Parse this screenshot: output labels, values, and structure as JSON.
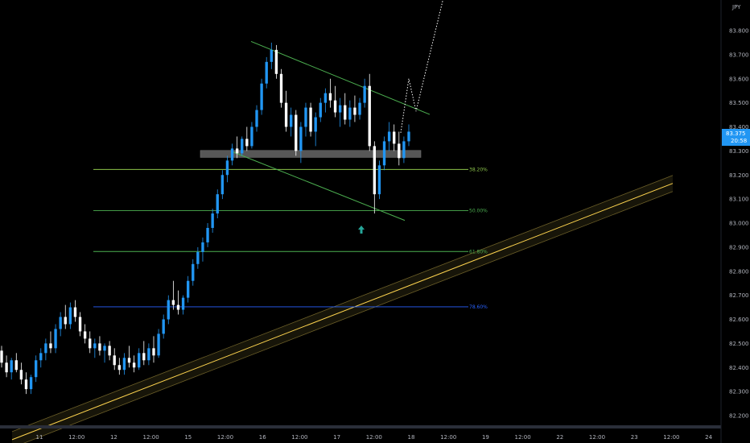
{
  "chart_data": {
    "type": "candlestick",
    "symbol_text": "JPY",
    "current_price_label": "83.375",
    "countdown_label": "20:58",
    "colors": {
      "up": "#2196f3",
      "down": "#ffffff",
      "fib_382": "#8bc34a",
      "fib_500": "#4caf50",
      "fib_618": "#4caf50",
      "fib_786": "#2962ff",
      "channel": "#4caf50",
      "trendline": "#ffd54f",
      "support_zone": "#9e9e9e",
      "badge": "#2196f3",
      "arrow": "#26a69a",
      "projection": "#ffffff"
    },
    "y_axis": {
      "ylim": [
        82.16,
        83.94
      ],
      "ticks": [
        "83.800",
        "83.700",
        "83.600",
        "83.500",
        "83.400",
        "83.300",
        "83.200",
        "83.100",
        "83.000",
        "82.900",
        "82.800",
        "82.700",
        "82.600",
        "82.500",
        "82.400",
        "82.300",
        "82.200"
      ]
    },
    "x_axis": {
      "ticks": [
        "11",
        "12:00",
        "12",
        "12:00",
        "15",
        "12:00",
        "16",
        "12:00",
        "17",
        "12:00",
        "18",
        "12:00",
        "19",
        "12:00",
        "22",
        "12:00",
        "23",
        "12:00",
        "24"
      ]
    },
    "candles_ohlc": [
      [
        82.47,
        82.49,
        82.4,
        82.42
      ],
      [
        82.42,
        82.45,
        82.36,
        82.38
      ],
      [
        82.38,
        82.44,
        82.35,
        82.43
      ],
      [
        82.43,
        82.46,
        82.38,
        82.39
      ],
      [
        82.39,
        82.42,
        82.33,
        82.35
      ],
      [
        82.35,
        82.38,
        82.29,
        82.31
      ],
      [
        82.31,
        82.37,
        82.29,
        82.36
      ],
      [
        82.36,
        82.45,
        82.34,
        82.43
      ],
      [
        82.43,
        82.48,
        82.4,
        82.46
      ],
      [
        82.46,
        82.52,
        82.43,
        82.5
      ],
      [
        82.5,
        82.55,
        82.46,
        82.48
      ],
      [
        82.48,
        82.58,
        82.46,
        82.56
      ],
      [
        82.56,
        82.63,
        82.53,
        82.61
      ],
      [
        82.61,
        82.66,
        82.56,
        82.58
      ],
      [
        82.58,
        82.67,
        82.56,
        82.65
      ],
      [
        82.65,
        82.68,
        82.59,
        82.61
      ],
      [
        82.61,
        82.63,
        82.53,
        82.55
      ],
      [
        82.55,
        82.58,
        82.5,
        82.52
      ],
      [
        82.52,
        82.55,
        82.46,
        82.48
      ],
      [
        82.48,
        82.52,
        82.44,
        82.5
      ],
      [
        82.5,
        82.53,
        82.45,
        82.47
      ],
      [
        82.47,
        82.5,
        82.42,
        82.49
      ],
      [
        82.49,
        82.51,
        82.43,
        82.45
      ],
      [
        82.45,
        82.48,
        82.39,
        82.41
      ],
      [
        82.41,
        82.44,
        82.37,
        82.39
      ],
      [
        82.39,
        82.46,
        82.37,
        82.44
      ],
      [
        82.44,
        82.49,
        82.4,
        82.42
      ],
      [
        82.42,
        82.45,
        82.38,
        82.4
      ],
      [
        82.4,
        82.48,
        82.39,
        82.46
      ],
      [
        82.46,
        82.51,
        82.41,
        82.43
      ],
      [
        82.43,
        82.5,
        82.41,
        82.48
      ],
      [
        82.48,
        82.53,
        82.42,
        82.45
      ],
      [
        82.45,
        82.56,
        82.44,
        82.54
      ],
      [
        82.54,
        82.62,
        82.52,
        82.6
      ],
      [
        82.6,
        82.7,
        82.58,
        82.68
      ],
      [
        82.68,
        82.76,
        82.64,
        82.66
      ],
      [
        82.66,
        82.72,
        82.62,
        82.64
      ],
      [
        82.64,
        82.7,
        82.62,
        82.69
      ],
      [
        82.69,
        82.78,
        82.67,
        82.76
      ],
      [
        82.76,
        82.85,
        82.74,
        82.83
      ],
      [
        82.83,
        82.9,
        82.81,
        82.88
      ],
      [
        82.88,
        82.94,
        82.84,
        82.92
      ],
      [
        82.92,
        83.0,
        82.9,
        82.98
      ],
      [
        82.98,
        83.06,
        82.96,
        83.04
      ],
      [
        83.04,
        83.14,
        83.02,
        83.12
      ],
      [
        83.12,
        83.22,
        83.1,
        83.2
      ],
      [
        83.2,
        83.28,
        83.17,
        83.26
      ],
      [
        83.26,
        83.33,
        83.24,
        83.31
      ],
      [
        83.31,
        83.36,
        83.27,
        83.29
      ],
      [
        83.29,
        83.36,
        83.28,
        83.35
      ],
      [
        83.35,
        83.4,
        83.3,
        83.32
      ],
      [
        83.32,
        83.42,
        83.31,
        83.4
      ],
      [
        83.4,
        83.49,
        83.38,
        83.47
      ],
      [
        83.47,
        83.6,
        83.45,
        83.58
      ],
      [
        83.58,
        83.69,
        83.56,
        83.67
      ],
      [
        83.67,
        83.75,
        83.64,
        83.72
      ],
      [
        83.72,
        83.74,
        83.6,
        83.62
      ],
      [
        83.62,
        83.64,
        83.48,
        83.5
      ],
      [
        83.5,
        83.55,
        83.38,
        83.4
      ],
      [
        83.4,
        83.48,
        83.36,
        83.45
      ],
      [
        83.45,
        83.47,
        83.28,
        83.3
      ],
      [
        83.3,
        83.42,
        83.25,
        83.4
      ],
      [
        83.4,
        83.5,
        83.36,
        83.48
      ],
      [
        83.48,
        83.5,
        83.36,
        83.38
      ],
      [
        83.38,
        83.46,
        83.32,
        83.44
      ],
      [
        83.44,
        83.52,
        83.42,
        83.5
      ],
      [
        83.5,
        83.56,
        83.46,
        83.54
      ],
      [
        83.54,
        83.6,
        83.48,
        83.51
      ],
      [
        83.51,
        83.57,
        83.44,
        83.46
      ],
      [
        83.46,
        83.52,
        83.4,
        83.49
      ],
      [
        83.49,
        83.54,
        83.41,
        83.43
      ],
      [
        83.43,
        83.51,
        83.4,
        83.48
      ],
      [
        83.48,
        83.53,
        83.42,
        83.45
      ],
      [
        83.45,
        83.52,
        83.43,
        83.5
      ],
      [
        83.5,
        83.6,
        83.48,
        83.57
      ],
      [
        83.57,
        83.62,
        83.3,
        83.32
      ],
      [
        83.32,
        83.34,
        83.04,
        83.12
      ],
      [
        83.12,
        83.26,
        83.1,
        83.24
      ],
      [
        83.24,
        83.36,
        83.22,
        83.34
      ],
      [
        83.34,
        83.42,
        83.3,
        83.38
      ],
      [
        83.38,
        83.41,
        83.3,
        83.33
      ],
      [
        83.33,
        83.38,
        83.24,
        83.27
      ],
      [
        83.27,
        83.36,
        83.25,
        83.34
      ],
      [
        83.34,
        83.41,
        83.32,
        83.38
      ]
    ],
    "fib_levels": [
      {
        "label": "38.20%",
        "price": 83.223
      },
      {
        "label": "50.00%",
        "price": 83.052
      },
      {
        "label": "61.80%",
        "price": 82.882
      },
      {
        "label": "78.60%",
        "price": 82.652
      }
    ],
    "support_zone": {
      "top": 83.302,
      "bottom": 83.273
    },
    "channel_upper": [
      {
        "price_start": 83.755,
        "price_end": 83.465
      }
    ],
    "channel_lower": [
      {
        "price_start": 83.295,
        "price_end": 83.018
      }
    ],
    "trendline": {
      "price_start": 82.1,
      "price_end": 83.165
    },
    "projection_path": [
      83.375,
      83.6,
      83.465,
      83.95
    ]
  }
}
